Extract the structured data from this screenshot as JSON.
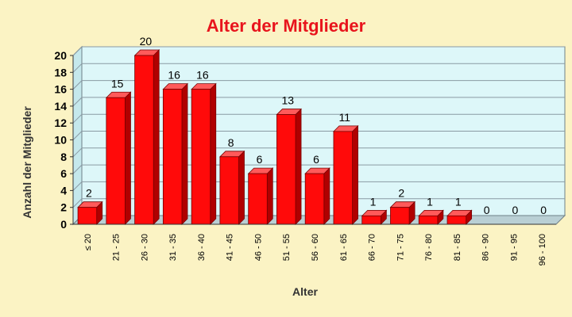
{
  "chart_data": {
    "type": "bar",
    "title": "Alter der Mitglieder",
    "xlabel": "Alter",
    "ylabel": "Anzahl der Mitglieder",
    "categories": [
      "≤ 20",
      "21 - 25",
      "26 - 30",
      "31 - 35",
      "36 - 40",
      "41 - 45",
      "46 - 50",
      "51 - 55",
      "56 - 60",
      "61 - 65",
      "66 - 70",
      "71 - 75",
      "76 - 80",
      "81 - 85",
      "86 - 90",
      "91 - 95",
      "96 - 100"
    ],
    "values": [
      2,
      15,
      20,
      16,
      16,
      8,
      6,
      13,
      6,
      11,
      1,
      2,
      1,
      1,
      0,
      0,
      0
    ],
    "ylim": [
      0,
      20
    ],
    "yticks": [
      0,
      2,
      4,
      6,
      8,
      10,
      12,
      14,
      16,
      18,
      20
    ],
    "grid": true,
    "data_labels": true,
    "legend": "none",
    "colors": {
      "background": "#fbf3c4",
      "plot_area": "#ddf7f9",
      "bar": "#ff0a0a",
      "bar_dark": "#b00000",
      "title": "#e8141c",
      "gridline": "#8a9aa3"
    }
  }
}
